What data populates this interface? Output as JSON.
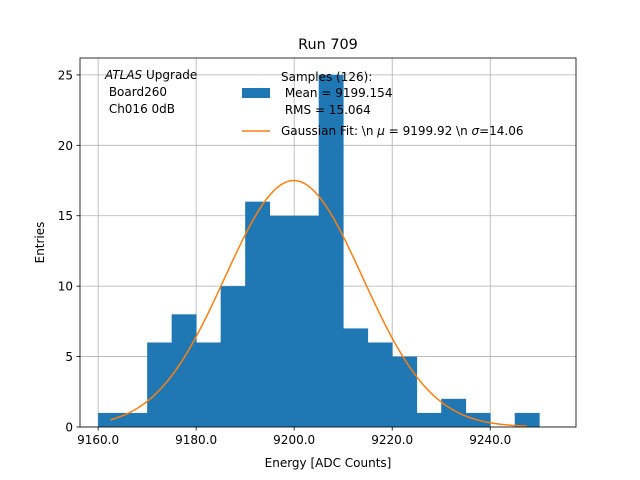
{
  "chart_data": {
    "type": "histogram",
    "title": "Run 709",
    "xlabel": "Energy [ADC Counts]",
    "ylabel": "Entries",
    "xlim": [
      9156.3,
      9257.5
    ],
    "ylim": [
      0,
      26.2
    ],
    "xticks": [
      9160.0,
      9180.0,
      9200.0,
      9220.0,
      9240.0
    ],
    "xtick_labels": [
      "9160.0",
      "9180.0",
      "9200.0",
      "9220.0",
      "9240.0"
    ],
    "yticks": [
      0,
      5,
      10,
      15,
      20,
      25
    ],
    "ytick_labels": [
      "0",
      "5",
      "10",
      "15",
      "20",
      "25"
    ],
    "grid": true,
    "bin_width": 5,
    "bins": [
      {
        "x0": 9160,
        "count": 1
      },
      {
        "x0": 9165,
        "count": 1
      },
      {
        "x0": 9170,
        "count": 6
      },
      {
        "x0": 9175,
        "count": 8
      },
      {
        "x0": 9180,
        "count": 6
      },
      {
        "x0": 9185,
        "count": 10
      },
      {
        "x0": 9190,
        "count": 16
      },
      {
        "x0": 9195,
        "count": 15
      },
      {
        "x0": 9200,
        "count": 15
      },
      {
        "x0": 9205,
        "count": 25
      },
      {
        "x0": 9210,
        "count": 7
      },
      {
        "x0": 9215,
        "count": 6
      },
      {
        "x0": 9220,
        "count": 5
      },
      {
        "x0": 9225,
        "count": 1
      },
      {
        "x0": 9230,
        "count": 2
      },
      {
        "x0": 9235,
        "count": 1
      },
      {
        "x0": 9240,
        "count": 0
      },
      {
        "x0": 9245,
        "count": 1
      }
    ],
    "fit": {
      "name": "Gaussian Fit",
      "mu": 9199.92,
      "sigma": 14.06,
      "amplitude": 17.5,
      "x_range": [
        9162.5,
        9247.5
      ]
    },
    "annotation": {
      "line1_italic": "ATLAS",
      "line1_rest": " Upgrade",
      "line2": " Board260",
      "line3": " Ch016 0dB"
    },
    "legend": {
      "placement": "top-right",
      "hist_line1": "Samples (126):",
      "hist_line2": " Mean = 9199.154",
      "hist_line3": " RMS = 15.064",
      "fit_prefix": "Gaussian Fit: \\n ",
      "fit_mu_symbol": "μ",
      "fit_mid": " = 9199.92 \\n ",
      "fit_sigma_symbol": "σ",
      "fit_suffix": "=14.06"
    },
    "colors": {
      "bar": "#1f77b4",
      "fit": "#ff7f0e",
      "grid": "#b0b0b0"
    }
  }
}
